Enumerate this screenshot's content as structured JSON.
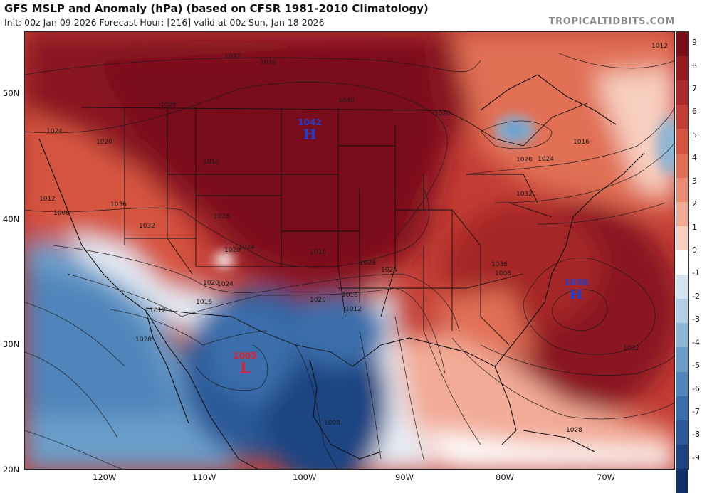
{
  "header": {
    "title": "GFS MSLP and Anomaly (hPa) (based on CFSR 1981-2010 Climatology)",
    "subtitle": "Init: 00z Jan 09 2026   Forecast Hour: [216]   valid at 00z Sun, Jan 18 2026",
    "brand": "TROPICALTIDBITS.COM"
  },
  "axes": {
    "lat_labels": [
      "50N",
      "40N",
      "30N",
      "20N"
    ],
    "lon_labels": [
      "120W",
      "110W",
      "100W",
      "90W",
      "80W",
      "70W"
    ]
  },
  "colorbar": {
    "ticks": [
      "9",
      "8",
      "7",
      "6",
      "5",
      "4",
      "3",
      "2",
      "1",
      "0",
      "-1",
      "-2",
      "-3",
      "-4",
      "-5",
      "-6",
      "-7",
      "-8",
      "-9"
    ],
    "colors": [
      "#7a0f1a",
      "#961c22",
      "#ad2a2c",
      "#c23d35",
      "#d5543f",
      "#e16f55",
      "#ea8c73",
      "#f2ab96",
      "#f8cfc0",
      "#ffffff",
      "#d4e4f0",
      "#b4cfe4",
      "#8eb6d6",
      "#6b9dc9",
      "#4f85bb",
      "#3a6eab",
      "#2b5898",
      "#1f4482",
      "#14306a"
    ]
  },
  "pressure_centers": [
    {
      "type": "H",
      "value": "1042",
      "color": "#1f3fd1"
    },
    {
      "type": "H",
      "value": "1030",
      "color": "#1f3fd1"
    },
    {
      "type": "L",
      "value": "1005",
      "color": "#e0202a"
    }
  ],
  "isobar_labels": [
    "1032",
    "1036",
    "1040",
    "1028",
    "1024",
    "1020",
    "1016",
    "1012",
    "1008",
    "1036",
    "1032",
    "1028",
    "1024",
    "1020",
    "1016",
    "1012",
    "1028",
    "1024",
    "1020",
    "1016",
    "1028",
    "1024",
    "1020",
    "1016",
    "1012",
    "1008",
    "1036",
    "1032",
    "1028",
    "1024",
    "1020",
    "1016",
    "1012",
    "1008",
    "1032",
    "1028"
  ],
  "palette": {
    "anomaly_high_dark": "#7a0f1a",
    "anomaly_high": "#c23d35",
    "anomaly_low": "#3a6eab",
    "anomaly_low_dark": "#1f4482"
  }
}
